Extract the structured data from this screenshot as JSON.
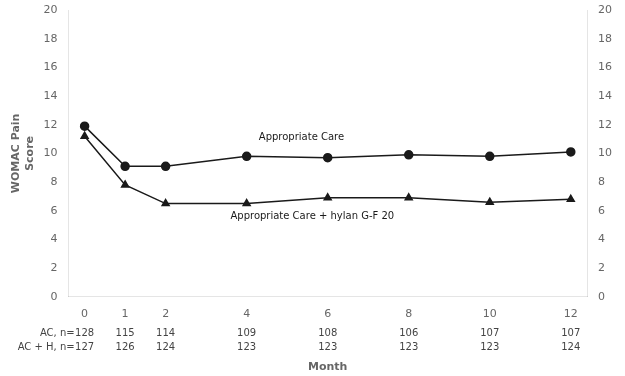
{
  "chart_data": {
    "type": "line",
    "x": [
      0,
      1,
      2,
      4,
      6,
      8,
      10,
      12
    ],
    "series": [
      {
        "values": [
          11.9,
          9.1,
          9.1,
          9.8,
          9.7,
          9.9,
          9.8,
          10.1
        ],
        "marker": "circle"
      },
      {
        "values": [
          11.2,
          7.8,
          6.5,
          6.5,
          6.9,
          6.9,
          6.6,
          6.8
        ],
        "marker": "triangle"
      }
    ],
    "color": "#1a1a1a",
    "annotations": [
      {
        "text": "Appropriate Care",
        "x": 4.3,
        "y": 10.9
      },
      {
        "text": "Appropriate Care + hylan G-F 20",
        "x": 3.6,
        "y": 5.45
      }
    ],
    "n_table": [
      {
        "label": "AC, n=",
        "values": [
          128,
          115,
          114,
          109,
          108,
          106,
          107,
          107
        ]
      },
      {
        "label": "AC + H, n=",
        "values": [
          127,
          126,
          124,
          123,
          123,
          123,
          123,
          124
        ]
      }
    ],
    "x_label": "Month",
    "y_label": "WOMAC Pain\nScore",
    "xlim": [
      -0.4,
      12.4
    ],
    "xticks": [
      0,
      1,
      2,
      4,
      6,
      8,
      10,
      12
    ],
    "ylim": [
      0,
      20
    ],
    "yticks": [
      0,
      2,
      4,
      6,
      8,
      10,
      12,
      14,
      16,
      18,
      20
    ],
    "y2lim": [
      0,
      20
    ],
    "y2ticks": [
      0,
      2,
      4,
      6,
      8,
      10,
      12,
      14,
      16,
      18,
      20
    ],
    "grid": false
  }
}
